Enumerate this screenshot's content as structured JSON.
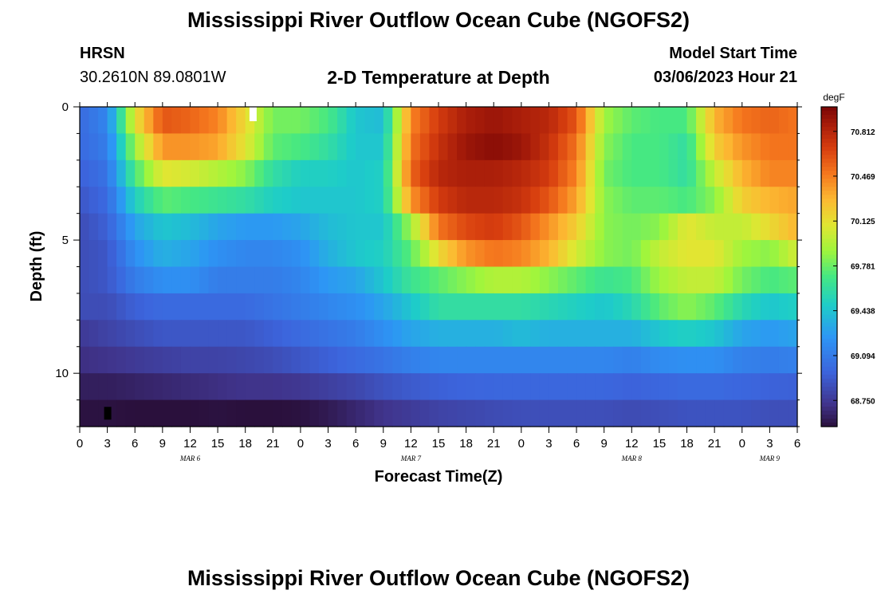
{
  "header": {
    "title": "Mississippi River Outflow Ocean Cube (NGOFS2)",
    "station_name": "HRSN",
    "station_coords": "30.2610N  89.0801W",
    "subtitle": "2-D Temperature at Depth",
    "model_start_label": "Model Start Time",
    "model_start_value": "03/06/2023 Hour 21"
  },
  "footer": {
    "title": "Mississippi River Outflow Ocean Cube (NGOFS2)"
  },
  "chart_data": {
    "type": "heatmap",
    "title": "2-D Temperature at Depth",
    "xlabel": "Forecast Time(Z)",
    "ylabel": "Depth (ft)",
    "units": "degF",
    "xlim_hours": [
      0,
      78
    ],
    "ylim_ft": [
      12,
      0
    ],
    "x_ticks": [
      "0",
      "3",
      "6",
      "9",
      "12",
      "15",
      "18",
      "21",
      "0",
      "3",
      "6",
      "9",
      "12",
      "15",
      "18",
      "21",
      "0",
      "3",
      "6",
      "9",
      "12",
      "15",
      "18",
      "21",
      "0",
      "3",
      "6"
    ],
    "date_labels": [
      {
        "label": "MAR 6",
        "hour": 12
      },
      {
        "label": "MAR 7",
        "hour": 36
      },
      {
        "label": "MAR 8",
        "hour": 60
      },
      {
        "label": "MAR 9",
        "hour": 75
      }
    ],
    "y_ticks": [
      "0",
      "5",
      "10"
    ],
    "colorbar_labels": [
      "70.812",
      "70.469",
      "70.125",
      "69.781",
      "69.438",
      "69.094",
      "68.750"
    ],
    "colorbar_values": [
      70.812,
      70.469,
      70.125,
      69.781,
      69.438,
      69.094,
      68.75
    ],
    "vmin": 68.55,
    "vmax": 71.0,
    "depths_ft": [
      0.5,
      1.5,
      2.5,
      3.5,
      4.5,
      5.5,
      6.5,
      7.5,
      8.5,
      9.5,
      10.5,
      11.5
    ],
    "hours": [
      0,
      3,
      6,
      9,
      12,
      15,
      18,
      21,
      24,
      27,
      30,
      33,
      36,
      39,
      42,
      45,
      48,
      51,
      54,
      57,
      60,
      63,
      66,
      69,
      72,
      75,
      78
    ],
    "temperature_degF": [
      [
        69.0,
        69.15,
        70.1,
        70.6,
        70.55,
        70.45,
        70.15,
        69.8,
        69.8,
        69.7,
        69.45,
        69.4,
        70.45,
        70.7,
        70.85,
        70.9,
        70.85,
        70.8,
        70.6,
        69.9,
        69.75,
        69.7,
        69.7,
        70.3,
        70.5,
        70.55,
        70.5
      ],
      [
        69.0,
        69.1,
        69.9,
        70.4,
        70.4,
        70.35,
        70.1,
        69.75,
        69.7,
        69.6,
        69.45,
        69.45,
        70.5,
        70.75,
        70.9,
        70.95,
        70.9,
        70.75,
        70.5,
        69.85,
        69.7,
        69.7,
        69.6,
        70.2,
        70.4,
        70.5,
        70.5
      ],
      [
        68.95,
        69.05,
        69.7,
        70.1,
        70.05,
        69.95,
        69.85,
        69.6,
        69.5,
        69.5,
        69.45,
        69.5,
        70.55,
        70.8,
        70.85,
        70.85,
        70.8,
        70.7,
        70.45,
        69.8,
        69.7,
        69.7,
        69.6,
        70.0,
        70.3,
        70.45,
        70.45
      ],
      [
        68.9,
        69.0,
        69.5,
        69.75,
        69.7,
        69.65,
        69.6,
        69.5,
        69.45,
        69.45,
        69.45,
        69.5,
        70.4,
        70.7,
        70.8,
        70.8,
        70.75,
        70.6,
        70.35,
        69.85,
        69.75,
        69.75,
        69.7,
        69.85,
        70.2,
        70.3,
        70.35
      ],
      [
        68.85,
        68.95,
        69.3,
        69.45,
        69.4,
        69.3,
        69.25,
        69.25,
        69.3,
        69.4,
        69.45,
        69.45,
        69.9,
        70.5,
        70.65,
        70.7,
        70.6,
        70.4,
        70.2,
        69.85,
        69.8,
        69.85,
        70.1,
        70.0,
        70.0,
        70.15,
        70.3
      ],
      [
        68.85,
        68.9,
        69.2,
        69.35,
        69.3,
        69.2,
        69.15,
        69.15,
        69.2,
        69.35,
        69.45,
        69.5,
        69.75,
        70.15,
        70.4,
        70.5,
        70.45,
        70.3,
        70.05,
        69.85,
        69.8,
        70.0,
        70.1,
        70.1,
        69.9,
        69.85,
        70.05
      ],
      [
        68.85,
        68.9,
        69.1,
        69.2,
        69.2,
        69.1,
        69.1,
        69.1,
        69.15,
        69.25,
        69.3,
        69.45,
        69.65,
        69.75,
        69.85,
        69.95,
        69.95,
        69.85,
        69.75,
        69.65,
        69.7,
        69.9,
        70.0,
        70.0,
        69.8,
        69.7,
        69.75
      ],
      [
        68.85,
        68.85,
        68.95,
        69.0,
        69.0,
        69.0,
        69.0,
        69.05,
        69.1,
        69.15,
        69.2,
        69.3,
        69.45,
        69.6,
        69.6,
        69.6,
        69.6,
        69.55,
        69.5,
        69.45,
        69.55,
        69.75,
        69.85,
        69.75,
        69.55,
        69.45,
        69.5
      ],
      [
        68.75,
        68.8,
        68.85,
        68.9,
        68.9,
        68.9,
        68.9,
        68.95,
        69.0,
        69.05,
        69.1,
        69.2,
        69.3,
        69.35,
        69.35,
        69.35,
        69.4,
        69.35,
        69.35,
        69.35,
        69.35,
        69.45,
        69.5,
        69.45,
        69.3,
        69.25,
        69.3
      ],
      [
        68.7,
        68.72,
        68.75,
        68.78,
        68.8,
        68.8,
        68.82,
        68.85,
        68.9,
        68.95,
        69.0,
        69.05,
        69.12,
        69.15,
        69.15,
        69.15,
        69.15,
        69.15,
        69.15,
        69.15,
        69.12,
        69.18,
        69.2,
        69.2,
        69.12,
        69.1,
        69.12
      ],
      [
        68.62,
        68.62,
        68.64,
        68.66,
        68.68,
        68.7,
        68.72,
        68.72,
        68.74,
        68.78,
        68.82,
        68.88,
        68.92,
        68.95,
        68.97,
        68.98,
        68.98,
        68.98,
        68.98,
        68.98,
        68.96,
        68.98,
        69.0,
        69.0,
        68.98,
        68.96,
        68.95
      ],
      [
        68.56,
        68.56,
        68.55,
        68.55,
        68.55,
        68.56,
        68.55,
        68.55,
        68.56,
        68.6,
        68.66,
        68.72,
        68.76,
        68.8,
        68.82,
        68.84,
        68.86,
        68.86,
        68.86,
        68.86,
        68.84,
        68.86,
        68.88,
        68.88,
        68.88,
        68.86,
        68.86
      ]
    ],
    "missing_markers": [
      {
        "color": "white",
        "hour": 18.8,
        "depth_ft": 0
      },
      {
        "color": "black",
        "hour": 3,
        "depth_ft": 11.5
      }
    ]
  }
}
